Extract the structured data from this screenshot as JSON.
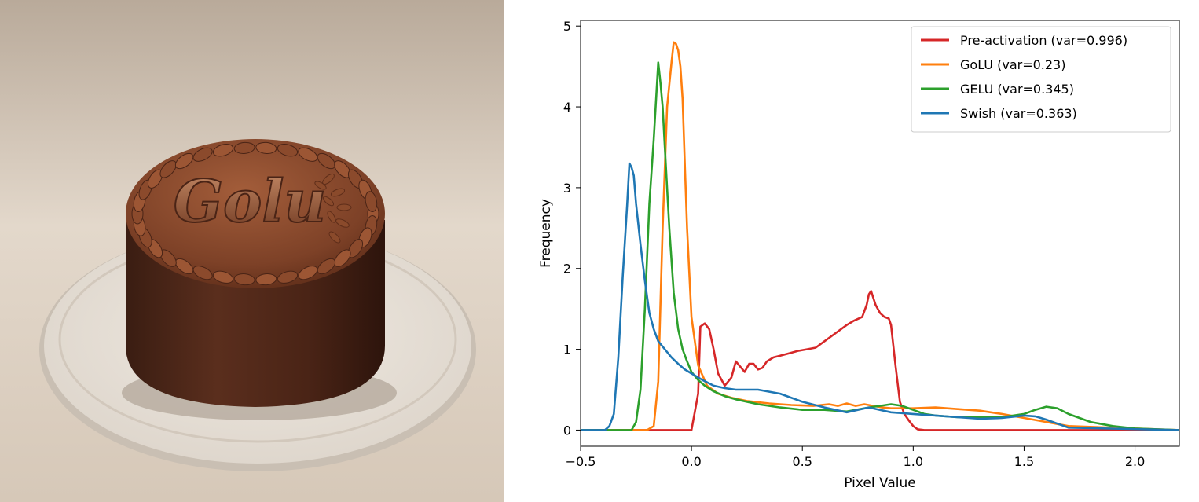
{
  "photo": {
    "cake_lettering": "Golu"
  },
  "chart_data": {
    "type": "line",
    "xlabel": "Pixel Value",
    "ylabel": "Frequency",
    "xlim": [
      -0.5,
      2.2
    ],
    "ylim": [
      -0.2,
      5.07
    ],
    "xticks": [
      -0.5,
      0.0,
      0.5,
      1.0,
      1.5,
      2.0
    ],
    "xtick_labels": [
      "−0.5",
      "0.0",
      "0.5",
      "1.0",
      "1.5",
      "2.0"
    ],
    "yticks": [
      0,
      1,
      2,
      3,
      4,
      5
    ],
    "ytick_labels": [
      "0",
      "1",
      "2",
      "3",
      "4",
      "5"
    ],
    "grid": false,
    "legend_position": "top-right",
    "series": [
      {
        "name": "Pre-activation (var=0.996)",
        "color": "#d62728",
        "x": [
          -0.5,
          0.0,
          0.03,
          0.04,
          0.06,
          0.08,
          0.1,
          0.12,
          0.15,
          0.18,
          0.2,
          0.24,
          0.26,
          0.28,
          0.3,
          0.32,
          0.34,
          0.37,
          0.4,
          0.44,
          0.48,
          0.52,
          0.56,
          0.6,
          0.65,
          0.7,
          0.73,
          0.77,
          0.79,
          0.8,
          0.81,
          0.83,
          0.85,
          0.87,
          0.89,
          0.9,
          0.92,
          0.94,
          0.96,
          0.98,
          1.0,
          1.02,
          1.05,
          1.1,
          2.2
        ],
        "y": [
          0.0,
          0.0,
          0.45,
          1.28,
          1.32,
          1.25,
          1.0,
          0.7,
          0.55,
          0.65,
          0.85,
          0.72,
          0.82,
          0.82,
          0.75,
          0.77,
          0.85,
          0.9,
          0.92,
          0.95,
          0.98,
          1.0,
          1.02,
          1.1,
          1.2,
          1.3,
          1.35,
          1.4,
          1.55,
          1.68,
          1.72,
          1.55,
          1.45,
          1.4,
          1.38,
          1.3,
          0.8,
          0.35,
          0.2,
          0.12,
          0.05,
          0.01,
          0.0,
          0.0,
          0.0
        ]
      },
      {
        "name": "GoLU (var=0.23)",
        "color": "#ff7f0e",
        "x": [
          -0.5,
          -0.2,
          -0.17,
          -0.15,
          -0.13,
          -0.11,
          -0.09,
          -0.08,
          -0.07,
          -0.06,
          -0.05,
          -0.04,
          -0.03,
          -0.02,
          0.0,
          0.03,
          0.07,
          0.12,
          0.18,
          0.25,
          0.35,
          0.45,
          0.55,
          0.62,
          0.66,
          0.7,
          0.74,
          0.78,
          0.82,
          0.86,
          0.9,
          0.95,
          1.0,
          1.1,
          1.2,
          1.3,
          1.4,
          1.5,
          1.6,
          1.7,
          2.2
        ],
        "y": [
          0.0,
          0.0,
          0.05,
          0.6,
          2.5,
          4.0,
          4.55,
          4.8,
          4.78,
          4.7,
          4.5,
          4.1,
          3.3,
          2.5,
          1.4,
          0.8,
          0.55,
          0.45,
          0.4,
          0.36,
          0.33,
          0.31,
          0.3,
          0.32,
          0.3,
          0.33,
          0.3,
          0.32,
          0.3,
          0.28,
          0.27,
          0.27,
          0.27,
          0.28,
          0.26,
          0.24,
          0.2,
          0.15,
          0.1,
          0.05,
          0.0
        ]
      },
      {
        "name": "GELU (var=0.345)",
        "color": "#2ca02c",
        "x": [
          -0.5,
          -0.27,
          -0.25,
          -0.23,
          -0.21,
          -0.19,
          -0.17,
          -0.15,
          -0.14,
          -0.13,
          -0.12,
          -0.1,
          -0.08,
          -0.06,
          -0.04,
          -0.02,
          0.0,
          0.03,
          0.06,
          0.1,
          0.15,
          0.2,
          0.3,
          0.4,
          0.5,
          0.6,
          0.7,
          0.8,
          0.85,
          0.9,
          0.95,
          1.0,
          1.05,
          1.1,
          1.2,
          1.3,
          1.4,
          1.5,
          1.55,
          1.6,
          1.65,
          1.7,
          1.8,
          1.9,
          2.0,
          2.2
        ],
        "y": [
          0.0,
          0.0,
          0.1,
          0.5,
          1.5,
          2.8,
          3.6,
          4.55,
          4.3,
          4.0,
          3.5,
          2.5,
          1.7,
          1.25,
          1.0,
          0.85,
          0.72,
          0.62,
          0.55,
          0.48,
          0.42,
          0.38,
          0.32,
          0.28,
          0.25,
          0.25,
          0.23,
          0.28,
          0.3,
          0.32,
          0.3,
          0.25,
          0.2,
          0.18,
          0.16,
          0.16,
          0.16,
          0.2,
          0.25,
          0.29,
          0.27,
          0.2,
          0.1,
          0.05,
          0.02,
          0.0
        ]
      },
      {
        "name": "Swish (var=0.363)",
        "color": "#1f77b4",
        "x": [
          -0.5,
          -0.39,
          -0.37,
          -0.35,
          -0.33,
          -0.31,
          -0.29,
          -0.28,
          -0.27,
          -0.26,
          -0.25,
          -0.23,
          -0.21,
          -0.19,
          -0.17,
          -0.15,
          -0.12,
          -0.09,
          -0.06,
          -0.03,
          0.0,
          0.05,
          0.1,
          0.15,
          0.2,
          0.3,
          0.4,
          0.5,
          0.6,
          0.7,
          0.8,
          0.9,
          1.0,
          1.1,
          1.2,
          1.3,
          1.4,
          1.5,
          1.55,
          1.6,
          1.65,
          1.7,
          2.2
        ],
        "y": [
          0.0,
          0.0,
          0.05,
          0.2,
          0.9,
          1.9,
          2.8,
          3.3,
          3.25,
          3.15,
          2.8,
          2.3,
          1.85,
          1.45,
          1.25,
          1.1,
          1.0,
          0.9,
          0.82,
          0.75,
          0.7,
          0.62,
          0.55,
          0.52,
          0.5,
          0.5,
          0.45,
          0.35,
          0.28,
          0.22,
          0.28,
          0.22,
          0.2,
          0.18,
          0.16,
          0.14,
          0.15,
          0.18,
          0.17,
          0.13,
          0.08,
          0.03,
          0.0
        ]
      }
    ]
  }
}
